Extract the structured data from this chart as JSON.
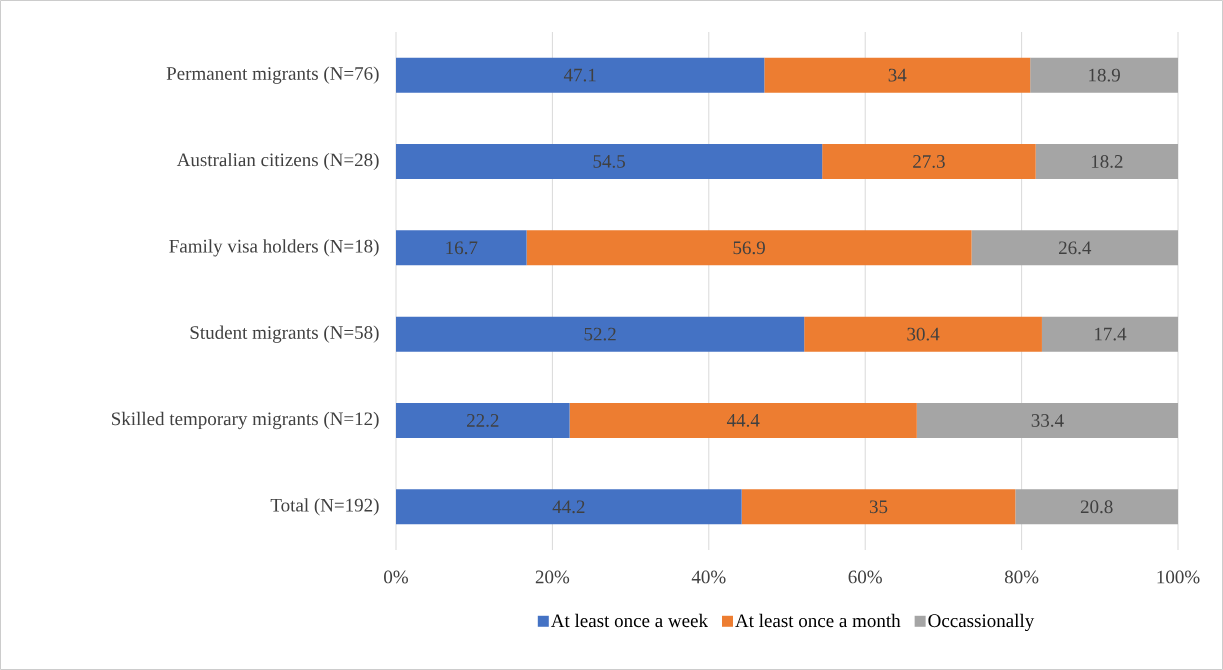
{
  "chart_data": {
    "type": "bar",
    "orientation": "horizontal",
    "stacked": true,
    "categories": [
      "Permanent migrants (N=76)",
      "Australian citizens (N=28)",
      "Family visa holders (N=18)",
      "Student migrants (N=58)",
      "Skilled temporary migrants (N=12)",
      "Total (N=192)"
    ],
    "series": [
      {
        "name": "At least once a week",
        "color": "#4472c4",
        "values": [
          47.1,
          54.5,
          16.7,
          52.2,
          22.2,
          44.2
        ]
      },
      {
        "name": "At least once a month",
        "color": "#ed7d31",
        "values": [
          34,
          27.3,
          56.9,
          30.4,
          44.4,
          35
        ]
      },
      {
        "name": "Occassionally",
        "color": "#a5a5a5",
        "values": [
          18.9,
          18.2,
          26.4,
          17.4,
          33.4,
          20.8
        ]
      }
    ],
    "xlim": [
      0,
      100
    ],
    "xticks": [
      {
        "value": 0,
        "label": "0%"
      },
      {
        "value": 20,
        "label": "20%"
      },
      {
        "value": 40,
        "label": "40%"
      },
      {
        "value": 60,
        "label": "60%"
      },
      {
        "value": 80,
        "label": "80%"
      },
      {
        "value": 100,
        "label": "100%"
      }
    ],
    "grid": "x",
    "legend": "bottom",
    "data_labels": true
  }
}
